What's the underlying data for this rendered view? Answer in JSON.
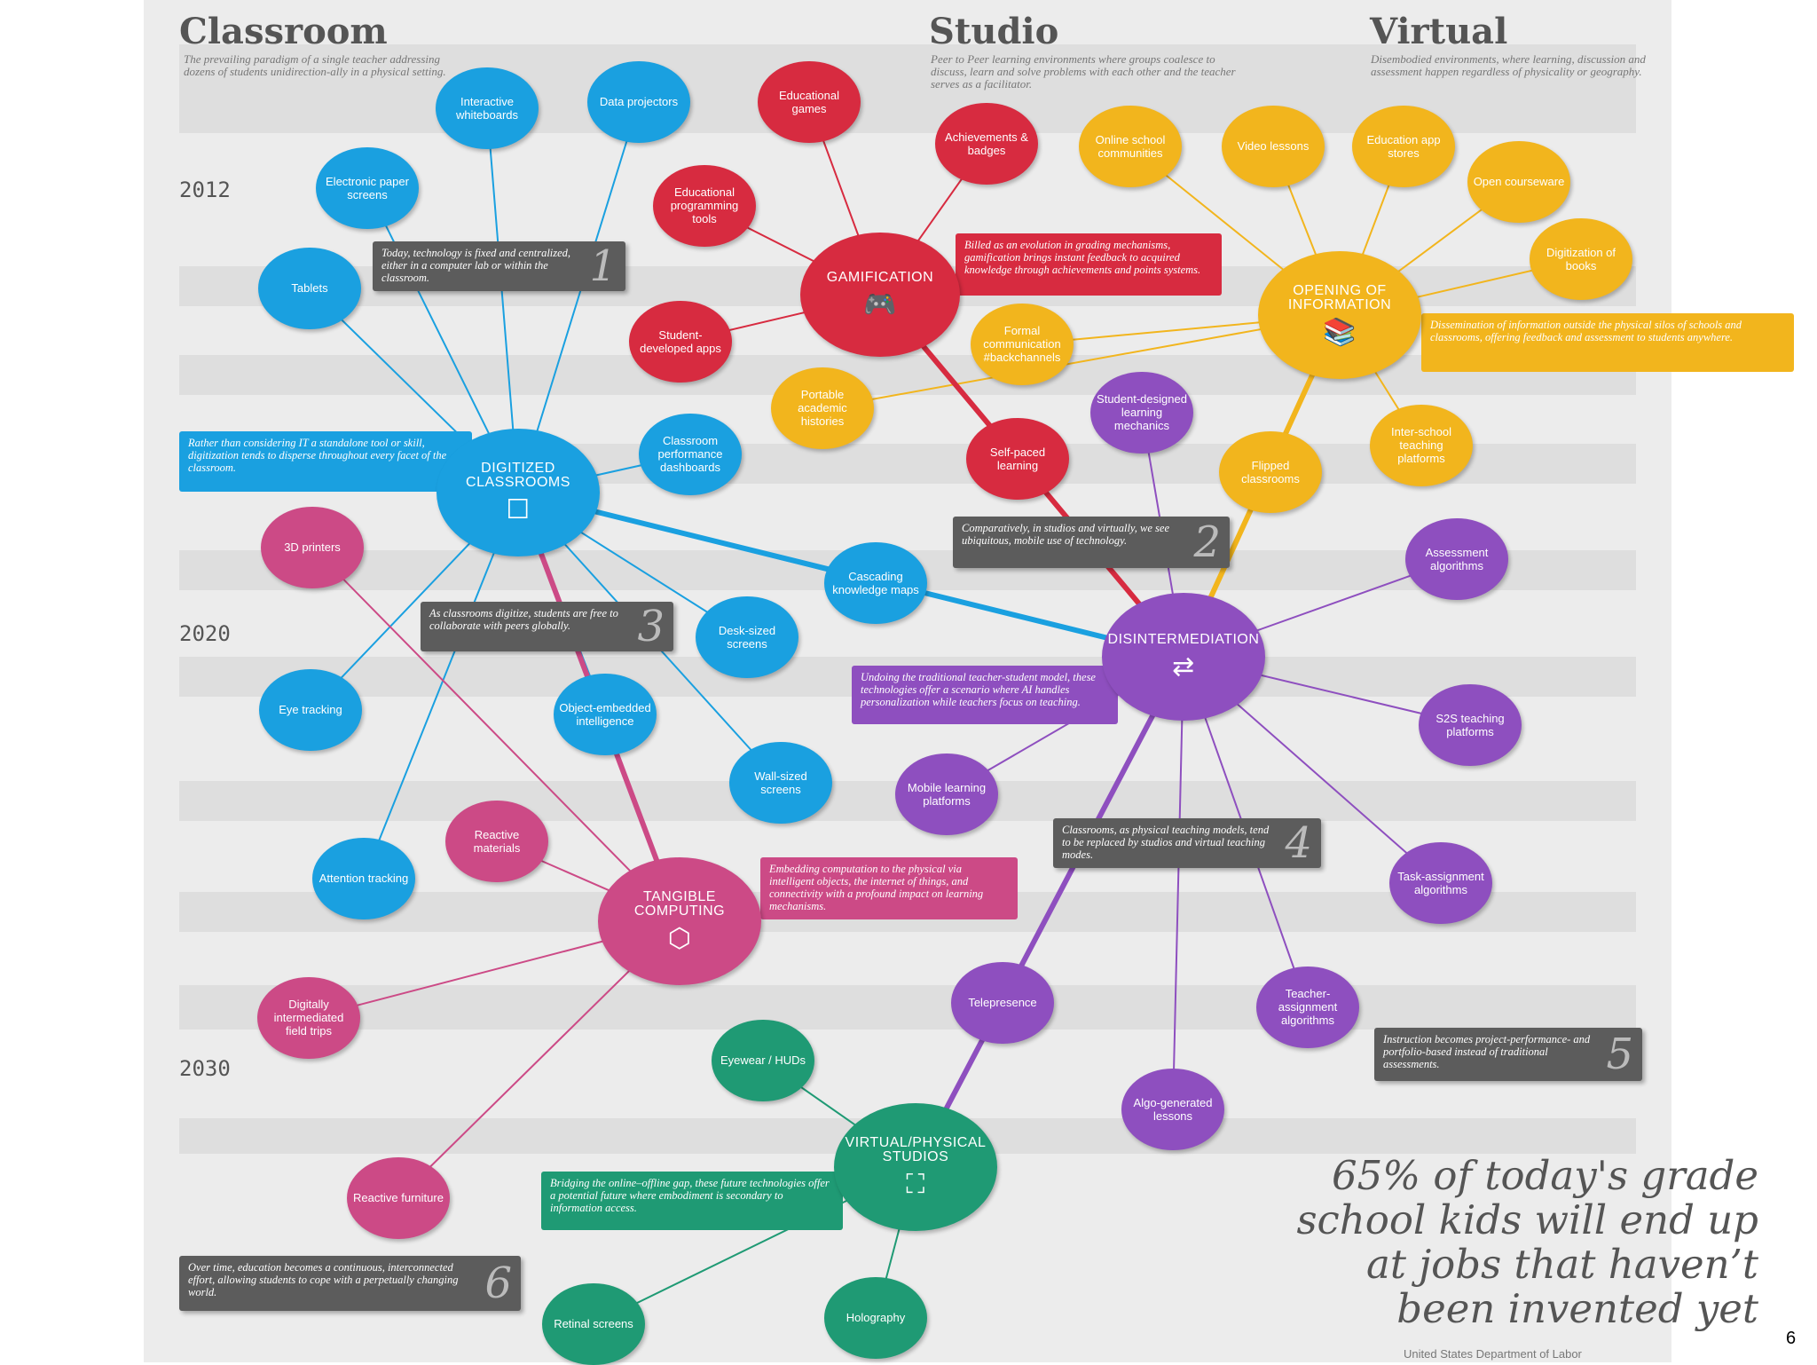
{
  "colors": {
    "blue": "#1aa0e0",
    "red": "#d72b40",
    "yellow": "#f2b51d",
    "purple": "#8e4fbf",
    "pink": "#cc4a86",
    "green": "#1f9a74",
    "gray": "#5c5c5c"
  },
  "columns": [
    {
      "title": "Classroom",
      "description": "The prevailing paradigm of a single teacher addressing dozens of students unidirection-ally in a physical setting."
    },
    {
      "title": "Studio",
      "description": "Peer to Peer learning environments where groups coalesce to discuss, learn and solve problems with each other and the teacher serves as a facilitator."
    },
    {
      "title": "Virtual",
      "description": "Disembodied environments, where learning, discussion and assessment happen regardless of physicality or geography."
    }
  ],
  "years": [
    "2012",
    "2020",
    "2030"
  ],
  "hubs": [
    {
      "id": "digitized",
      "label": "DIGITIZED CLASSROOMS",
      "color": "blue",
      "icon": "tablet-touch-icon",
      "glyph": "☐"
    },
    {
      "id": "gamification",
      "label": "GAMIFICATION",
      "color": "red",
      "icon": "gamepad-icon",
      "glyph": "🎮"
    },
    {
      "id": "opening",
      "label": "OPENING OF INFORMATION",
      "color": "yellow",
      "icon": "books-icon",
      "glyph": "📚"
    },
    {
      "id": "disintermediation",
      "label": "DISINTERMEDIATION",
      "color": "purple",
      "icon": "shuffle-icon",
      "glyph": "⇄"
    },
    {
      "id": "tangible",
      "label": "TANGIBLE COMPUTING",
      "color": "pink",
      "icon": "hands-cube-icon",
      "glyph": "⬡"
    },
    {
      "id": "virtual",
      "label": "VIRTUAL/PHYSICAL STUDIOS",
      "color": "green",
      "icon": "frame-icon",
      "glyph": "⛶"
    }
  ],
  "nodes": [
    {
      "id": "iwb",
      "label": "Interactive whiteboards",
      "color": "blue",
      "hub": "digitized"
    },
    {
      "id": "dataproj",
      "label": "Data projectors",
      "color": "blue",
      "hub": "digitized"
    },
    {
      "id": "epaper",
      "label": "Electronic paper screens",
      "color": "blue",
      "hub": "digitized"
    },
    {
      "id": "tablets",
      "label": "Tablets",
      "color": "blue",
      "hub": "digitized"
    },
    {
      "id": "cpd",
      "label": "Classroom performance dashboards",
      "color": "blue",
      "hub": "digitized"
    },
    {
      "id": "ckm",
      "label": "Cascading knowledge maps",
      "color": "blue",
      "hub": "digitized"
    },
    {
      "id": "desk",
      "label": "Desk-sized screens",
      "color": "blue",
      "hub": "digitized"
    },
    {
      "id": "eye",
      "label": "Eye tracking",
      "color": "blue",
      "hub": "digitized"
    },
    {
      "id": "oei",
      "label": "Object-embedded intelligence",
      "color": "blue",
      "hub": "digitized"
    },
    {
      "id": "wall",
      "label": "Wall-sized screens",
      "color": "blue",
      "hub": "digitized"
    },
    {
      "id": "attention",
      "label": "Attention tracking",
      "color": "blue",
      "hub": "digitized"
    },
    {
      "id": "edgames",
      "label": "Educational games",
      "color": "red",
      "hub": "gamification"
    },
    {
      "id": "achieve",
      "label": "Achievements & badges",
      "color": "red",
      "hub": "gamification"
    },
    {
      "id": "edprog",
      "label": "Educational programming tools",
      "color": "red",
      "hub": "gamification"
    },
    {
      "id": "studapps",
      "label": "Student-developed apps",
      "color": "red",
      "hub": "gamification"
    },
    {
      "id": "selfpaced",
      "label": "Self-paced learning",
      "color": "red",
      "hub": "gamification"
    },
    {
      "id": "onlinesc",
      "label": "Online school communities",
      "color": "yellow",
      "hub": "opening"
    },
    {
      "id": "video",
      "label": "Video lessons",
      "color": "yellow",
      "hub": "opening"
    },
    {
      "id": "appstores",
      "label": "Education app stores",
      "color": "yellow",
      "hub": "opening"
    },
    {
      "id": "opencw",
      "label": "Open courseware",
      "color": "yellow",
      "hub": "opening"
    },
    {
      "id": "digbooks",
      "label": "Digitization of books",
      "color": "yellow",
      "hub": "opening"
    },
    {
      "id": "formal",
      "label": "Formal communication #backchannels",
      "color": "yellow",
      "hub": "opening"
    },
    {
      "id": "portable",
      "label": "Portable academic histories",
      "color": "yellow",
      "hub": "opening"
    },
    {
      "id": "interschool",
      "label": "Inter-school teaching platforms",
      "color": "yellow",
      "hub": "opening"
    },
    {
      "id": "flipped",
      "label": "Flipped classrooms",
      "color": "yellow",
      "hub": "opening"
    },
    {
      "id": "sdlm",
      "label": "Student-designed learning mechanics",
      "color": "purple",
      "hub": "disintermediation"
    },
    {
      "id": "assess",
      "label": "Assessment algorithms",
      "color": "purple",
      "hub": "disintermediation"
    },
    {
      "id": "s2s",
      "label": "S2S teaching platforms",
      "color": "purple",
      "hub": "disintermediation"
    },
    {
      "id": "mobile",
      "label": "Mobile learning platforms",
      "color": "purple",
      "hub": "disintermediation"
    },
    {
      "id": "task",
      "label": "Task-assignment algorithms",
      "color": "purple",
      "hub": "disintermediation"
    },
    {
      "id": "telepres",
      "label": "Telepresence",
      "color": "purple",
      "hub": "disintermediation"
    },
    {
      "id": "teacher",
      "label": "Teacher-assignment algorithms",
      "color": "purple",
      "hub": "disintermediation"
    },
    {
      "id": "algo",
      "label": "Algo-generated lessons",
      "color": "purple",
      "hub": "disintermediation"
    },
    {
      "id": "printers",
      "label": "3D printers",
      "color": "pink",
      "hub": "tangible"
    },
    {
      "id": "reactmat",
      "label": "Reactive materials",
      "color": "pink",
      "hub": "tangible"
    },
    {
      "id": "digtrips",
      "label": "Digitally intermediated field trips",
      "color": "pink",
      "hub": "tangible"
    },
    {
      "id": "reactfurn",
      "label": "Reactive furniture",
      "color": "pink",
      "hub": "tangible"
    },
    {
      "id": "eyewear",
      "label": "Eyewear / HUDs",
      "color": "green",
      "hub": "virtual"
    },
    {
      "id": "retinal",
      "label": "Retinal screens",
      "color": "green",
      "hub": "virtual"
    },
    {
      "id": "holo",
      "label": "Holography",
      "color": "green",
      "hub": "virtual"
    }
  ],
  "hub_links": [
    {
      "from": "digitized",
      "to": "disintermediation",
      "color": "blue"
    },
    {
      "from": "gamification",
      "to": "disintermediation",
      "color": "red"
    },
    {
      "from": "opening",
      "to": "disintermediation",
      "color": "yellow"
    },
    {
      "from": "digitized",
      "to": "tangible",
      "color": "pink"
    },
    {
      "from": "disintermediation",
      "to": "virtual",
      "color": "purple"
    }
  ],
  "callouts": [
    {
      "id": "c1",
      "text": "Today, technology is fixed and centralized, either in a computer lab or within the classroom.",
      "number": "1",
      "color": "gray"
    },
    {
      "id": "c2",
      "text": "Comparatively, in studios and virtually, we see ubiquitous, mobile use of technology.",
      "number": "2",
      "color": "gray"
    },
    {
      "id": "c3",
      "text": "As classrooms digitize, students are free to collaborate with peers globally.",
      "number": "3",
      "color": "gray"
    },
    {
      "id": "c4",
      "text": "Classrooms, as physical teaching models, tend to be replaced by studios and virtual teaching modes.",
      "number": "4",
      "color": "gray"
    },
    {
      "id": "c5",
      "text": "Instruction becomes project-performance- and portfolio-based instead of traditional assessments.",
      "number": "5",
      "color": "gray"
    },
    {
      "id": "c6",
      "text": "Over time, education becomes a continuous, interconnected effort, allowing students to cope with a perpetually changing world.",
      "number": "6",
      "color": "gray"
    },
    {
      "id": "cg",
      "text": "Billed as an evolution in grading mechanisms, gamification brings instant feedback to acquired knowledge through achievements and points systems.",
      "color": "red"
    },
    {
      "id": "co",
      "text": "Dissemination of information outside the physical silos of schools and classrooms, offering feedback and assessment to students anywhere.",
      "color": "yellow"
    },
    {
      "id": "cd",
      "text": "Rather than considering IT a standalone tool or skill, digitization tends to disperse throughout every facet of the classroom.",
      "color": "blue"
    },
    {
      "id": "ci",
      "text": "Undoing the traditional teacher-student model, these technologies offer a scenario where AI handles personalization while teachers focus on teaching.",
      "color": "purple"
    },
    {
      "id": "ct",
      "text": "Embedding computation to the physical via intelligent objects, the internet of things, and connectivity with a profound impact on learning mechanisms.",
      "color": "pink"
    },
    {
      "id": "cv",
      "text": "Bridging the online–offline gap, these future technologies offer a potential future where embodiment is secondary to information access.",
      "color": "green"
    }
  ],
  "quote": {
    "lines": [
      "65% of today's grade",
      "school kids will end up",
      "at jobs that haven’t",
      "been invented yet"
    ],
    "source": "United States Department of Labor"
  },
  "slide_number": "6"
}
